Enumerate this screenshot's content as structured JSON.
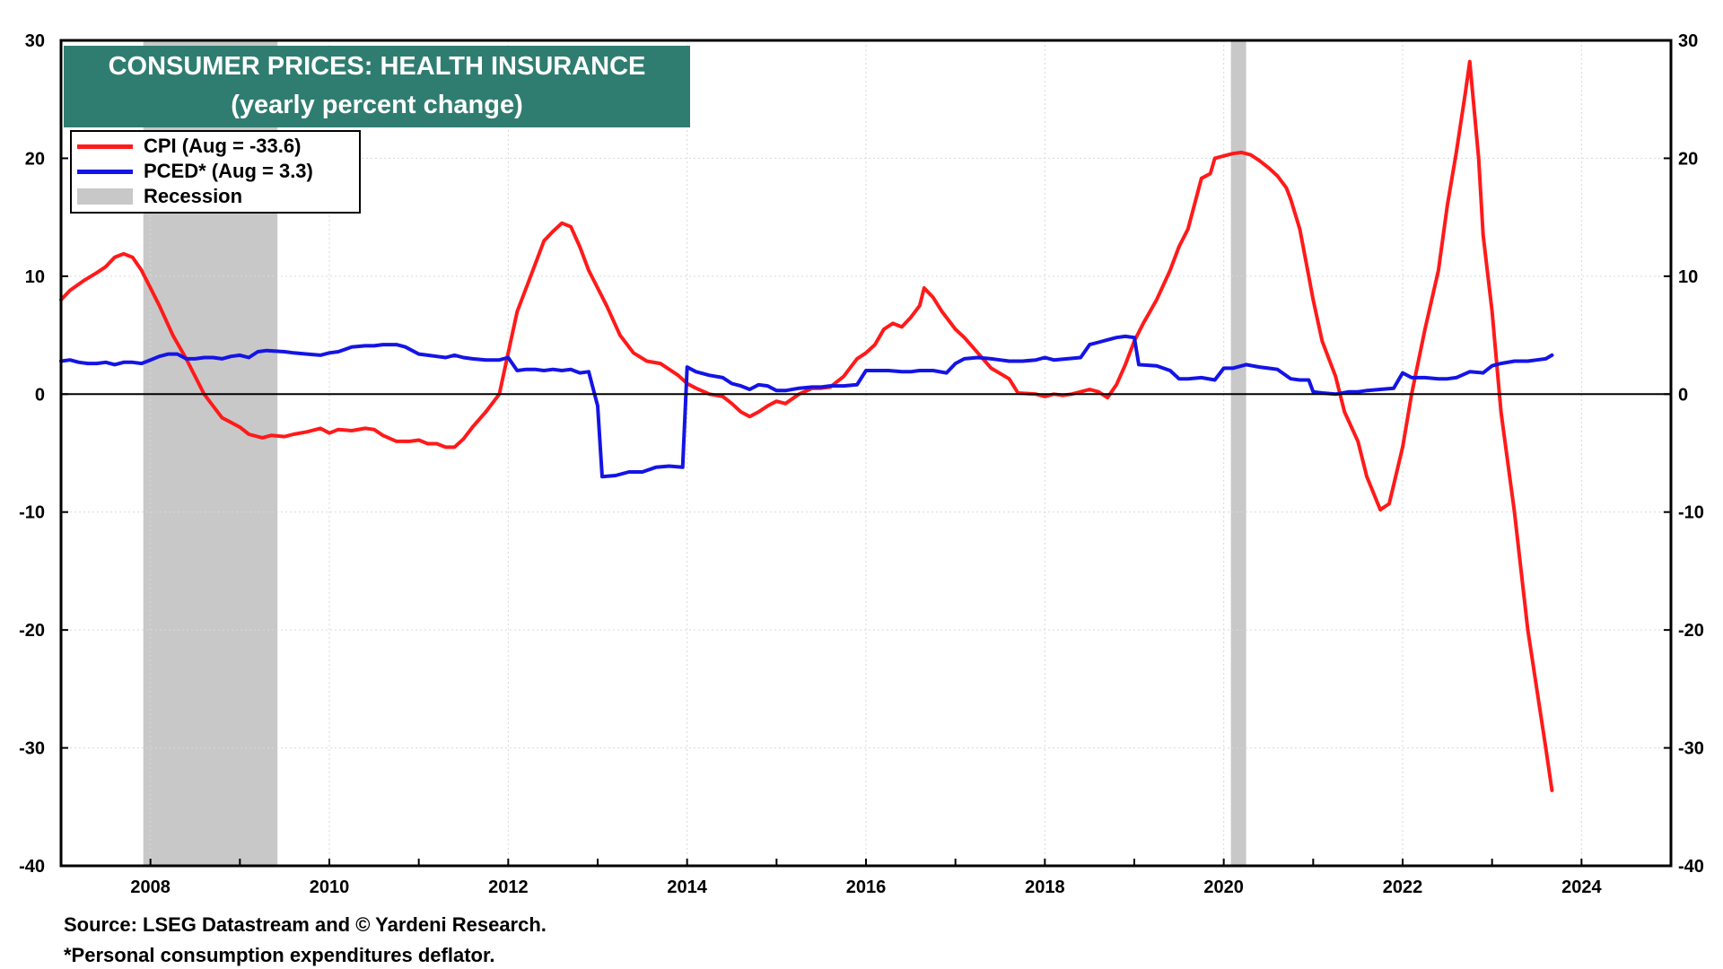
{
  "chart_data": {
    "type": "line",
    "title": "CONSUMER PRICES: HEALTH INSURANCE",
    "subtitle": "(yearly percent change)",
    "xlabel": "",
    "ylabel": "",
    "xlim": [
      2007.0,
      2025.0
    ],
    "ylim": [
      -40,
      30
    ],
    "y_ticks": [
      30,
      20,
      10,
      0,
      -10,
      -20,
      -30,
      -40
    ],
    "x_ticks": [
      2008,
      2010,
      2012,
      2014,
      2016,
      2018,
      2020,
      2022,
      2024
    ],
    "grid": true,
    "legend_position": "top-left",
    "recessions": [
      [
        2007.92,
        2009.42
      ],
      [
        2020.08,
        2020.25
      ]
    ],
    "series": [
      {
        "name": "CPI",
        "legend_label": "CPI (Aug = -33.6)",
        "color": "#ff1a1a",
        "points": [
          [
            2007.0,
            8.0
          ],
          [
            2007.1,
            8.8
          ],
          [
            2007.25,
            9.6
          ],
          [
            2007.4,
            10.3
          ],
          [
            2007.5,
            10.8
          ],
          [
            2007.6,
            11.6
          ],
          [
            2007.7,
            11.9
          ],
          [
            2007.8,
            11.6
          ],
          [
            2007.9,
            10.5
          ],
          [
            2008.0,
            9.0
          ],
          [
            2008.1,
            7.5
          ],
          [
            2008.25,
            5.0
          ],
          [
            2008.4,
            3.0
          ],
          [
            2008.5,
            1.5
          ],
          [
            2008.6,
            0.0
          ],
          [
            2008.7,
            -1.0
          ],
          [
            2008.8,
            -2.0
          ],
          [
            2008.9,
            -2.4
          ],
          [
            2009.0,
            -2.8
          ],
          [
            2009.1,
            -3.4
          ],
          [
            2009.25,
            -3.7
          ],
          [
            2009.35,
            -3.5
          ],
          [
            2009.5,
            -3.6
          ],
          [
            2009.6,
            -3.4
          ],
          [
            2009.75,
            -3.2
          ],
          [
            2009.9,
            -2.9
          ],
          [
            2010.0,
            -3.3
          ],
          [
            2010.1,
            -3.0
          ],
          [
            2010.25,
            -3.1
          ],
          [
            2010.4,
            -2.9
          ],
          [
            2010.5,
            -3.0
          ],
          [
            2010.6,
            -3.5
          ],
          [
            2010.75,
            -4.0
          ],
          [
            2010.9,
            -4.0
          ],
          [
            2011.0,
            -3.9
          ],
          [
            2011.1,
            -4.2
          ],
          [
            2011.2,
            -4.2
          ],
          [
            2011.3,
            -4.5
          ],
          [
            2011.4,
            -4.5
          ],
          [
            2011.5,
            -3.8
          ],
          [
            2011.6,
            -2.8
          ],
          [
            2011.75,
            -1.5
          ],
          [
            2011.9,
            0.0
          ],
          [
            2012.0,
            3.5
          ],
          [
            2012.1,
            7.0
          ],
          [
            2012.25,
            10.0
          ],
          [
            2012.4,
            13.0
          ],
          [
            2012.5,
            13.8
          ],
          [
            2012.6,
            14.5
          ],
          [
            2012.7,
            14.2
          ],
          [
            2012.8,
            12.5
          ],
          [
            2012.9,
            10.5
          ],
          [
            2013.0,
            9.0
          ],
          [
            2013.1,
            7.5
          ],
          [
            2013.25,
            5.0
          ],
          [
            2013.4,
            3.5
          ],
          [
            2013.55,
            2.8
          ],
          [
            2013.7,
            2.6
          ],
          [
            2013.9,
            1.6
          ],
          [
            2014.0,
            0.9
          ],
          [
            2014.1,
            0.5
          ],
          [
            2014.25,
            0.0
          ],
          [
            2014.4,
            -0.2
          ],
          [
            2014.5,
            -0.8
          ],
          [
            2014.6,
            -1.5
          ],
          [
            2014.7,
            -1.9
          ],
          [
            2014.8,
            -1.5
          ],
          [
            2014.9,
            -1.0
          ],
          [
            2015.0,
            -0.6
          ],
          [
            2015.1,
            -0.8
          ],
          [
            2015.25,
            0.0
          ],
          [
            2015.4,
            0.5
          ],
          [
            2015.5,
            0.5
          ],
          [
            2015.6,
            0.6
          ],
          [
            2015.75,
            1.5
          ],
          [
            2015.9,
            3.0
          ],
          [
            2016.0,
            3.5
          ],
          [
            2016.1,
            4.2
          ],
          [
            2016.2,
            5.5
          ],
          [
            2016.3,
            6.0
          ],
          [
            2016.4,
            5.7
          ],
          [
            2016.5,
            6.5
          ],
          [
            2016.6,
            7.5
          ],
          [
            2016.65,
            9.0
          ],
          [
            2016.75,
            8.2
          ],
          [
            2016.85,
            7.0
          ],
          [
            2017.0,
            5.5
          ],
          [
            2017.1,
            4.8
          ],
          [
            2017.25,
            3.5
          ],
          [
            2017.4,
            2.2
          ],
          [
            2017.6,
            1.3
          ],
          [
            2017.7,
            0.1
          ],
          [
            2017.9,
            0.0
          ],
          [
            2018.0,
            -0.2
          ],
          [
            2018.1,
            0.0
          ],
          [
            2018.2,
            -0.1
          ],
          [
            2018.3,
            0.0
          ],
          [
            2018.4,
            0.2
          ],
          [
            2018.5,
            0.4
          ],
          [
            2018.6,
            0.2
          ],
          [
            2018.7,
            -0.3
          ],
          [
            2018.8,
            0.8
          ],
          [
            2018.9,
            2.5
          ],
          [
            2019.0,
            4.5
          ],
          [
            2019.1,
            6.0
          ],
          [
            2019.25,
            8.0
          ],
          [
            2019.4,
            10.5
          ],
          [
            2019.5,
            12.5
          ],
          [
            2019.6,
            14.0
          ],
          [
            2019.75,
            18.3
          ],
          [
            2019.85,
            18.7
          ],
          [
            2019.9,
            20.0
          ],
          [
            2020.0,
            20.2
          ],
          [
            2020.1,
            20.4
          ],
          [
            2020.2,
            20.5
          ],
          [
            2020.3,
            20.3
          ],
          [
            2020.4,
            19.8
          ],
          [
            2020.5,
            19.2
          ],
          [
            2020.6,
            18.5
          ],
          [
            2020.7,
            17.5
          ],
          [
            2020.75,
            16.5
          ],
          [
            2020.85,
            14.0
          ],
          [
            2020.95,
            10.0
          ],
          [
            2021.0,
            8.0
          ],
          [
            2021.1,
            4.5
          ],
          [
            2021.25,
            1.5
          ],
          [
            2021.35,
            -1.5
          ],
          [
            2021.5,
            -4.0
          ],
          [
            2021.6,
            -7.0
          ],
          [
            2021.75,
            -9.8
          ],
          [
            2021.85,
            -9.3
          ],
          [
            2022.0,
            -4.5
          ],
          [
            2022.1,
            0.0
          ],
          [
            2022.25,
            5.5
          ],
          [
            2022.4,
            10.5
          ],
          [
            2022.5,
            16.0
          ],
          [
            2022.6,
            20.5
          ],
          [
            2022.7,
            25.5
          ],
          [
            2022.75,
            28.2
          ],
          [
            2022.85,
            20.0
          ],
          [
            2022.9,
            13.5
          ],
          [
            2023.0,
            7.0
          ],
          [
            2023.1,
            -1.5
          ],
          [
            2023.25,
            -10.0
          ],
          [
            2023.4,
            -20.0
          ],
          [
            2023.5,
            -25.0
          ],
          [
            2023.6,
            -30.0
          ],
          [
            2023.67,
            -33.6
          ]
        ]
      },
      {
        "name": "PCED*",
        "legend_label": "PCED* (Aug = 3.3)",
        "color": "#1414e6",
        "points": [
          [
            2007.0,
            2.8
          ],
          [
            2007.1,
            2.9
          ],
          [
            2007.2,
            2.7
          ],
          [
            2007.3,
            2.6
          ],
          [
            2007.4,
            2.6
          ],
          [
            2007.5,
            2.7
          ],
          [
            2007.6,
            2.5
          ],
          [
            2007.7,
            2.7
          ],
          [
            2007.8,
            2.7
          ],
          [
            2007.9,
            2.6
          ],
          [
            2008.0,
            2.9
          ],
          [
            2008.1,
            3.2
          ],
          [
            2008.2,
            3.4
          ],
          [
            2008.3,
            3.4
          ],
          [
            2008.4,
            3.0
          ],
          [
            2008.5,
            3.0
          ],
          [
            2008.6,
            3.1
          ],
          [
            2008.7,
            3.1
          ],
          [
            2008.8,
            3.0
          ],
          [
            2008.9,
            3.2
          ],
          [
            2009.0,
            3.3
          ],
          [
            2009.1,
            3.1
          ],
          [
            2009.2,
            3.6
          ],
          [
            2009.3,
            3.7
          ],
          [
            2009.5,
            3.6
          ],
          [
            2009.6,
            3.5
          ],
          [
            2009.75,
            3.4
          ],
          [
            2009.9,
            3.3
          ],
          [
            2010.0,
            3.5
          ],
          [
            2010.1,
            3.6
          ],
          [
            2010.25,
            4.0
          ],
          [
            2010.4,
            4.1
          ],
          [
            2010.5,
            4.1
          ],
          [
            2010.6,
            4.2
          ],
          [
            2010.75,
            4.2
          ],
          [
            2010.85,
            4.0
          ],
          [
            2011.0,
            3.4
          ],
          [
            2011.1,
            3.3
          ],
          [
            2011.2,
            3.2
          ],
          [
            2011.3,
            3.1
          ],
          [
            2011.4,
            3.3
          ],
          [
            2011.5,
            3.1
          ],
          [
            2011.6,
            3.0
          ],
          [
            2011.75,
            2.9
          ],
          [
            2011.9,
            2.9
          ],
          [
            2012.0,
            3.1
          ],
          [
            2012.1,
            2.0
          ],
          [
            2012.2,
            2.1
          ],
          [
            2012.3,
            2.1
          ],
          [
            2012.4,
            2.0
          ],
          [
            2012.5,
            2.1
          ],
          [
            2012.6,
            2.0
          ],
          [
            2012.7,
            2.1
          ],
          [
            2012.8,
            1.8
          ],
          [
            2012.9,
            1.9
          ],
          [
            2013.0,
            -1.0
          ],
          [
            2013.05,
            -7.0
          ],
          [
            2013.2,
            -6.9
          ],
          [
            2013.35,
            -6.6
          ],
          [
            2013.5,
            -6.6
          ],
          [
            2013.65,
            -6.2
          ],
          [
            2013.8,
            -6.1
          ],
          [
            2013.95,
            -6.2
          ],
          [
            2014.0,
            2.3
          ],
          [
            2014.1,
            1.9
          ],
          [
            2014.25,
            1.6
          ],
          [
            2014.4,
            1.4
          ],
          [
            2014.5,
            0.9
          ],
          [
            2014.6,
            0.7
          ],
          [
            2014.7,
            0.4
          ],
          [
            2014.8,
            0.8
          ],
          [
            2014.9,
            0.7
          ],
          [
            2015.0,
            0.3
          ],
          [
            2015.1,
            0.3
          ],
          [
            2015.25,
            0.5
          ],
          [
            2015.4,
            0.6
          ],
          [
            2015.5,
            0.6
          ],
          [
            2015.6,
            0.7
          ],
          [
            2015.75,
            0.7
          ],
          [
            2015.9,
            0.8
          ],
          [
            2016.0,
            2.0
          ],
          [
            2016.1,
            2.0
          ],
          [
            2016.25,
            2.0
          ],
          [
            2016.4,
            1.9
          ],
          [
            2016.5,
            1.9
          ],
          [
            2016.6,
            2.0
          ],
          [
            2016.75,
            2.0
          ],
          [
            2016.9,
            1.8
          ],
          [
            2017.0,
            2.6
          ],
          [
            2017.1,
            3.0
          ],
          [
            2017.25,
            3.1
          ],
          [
            2017.4,
            3.0
          ],
          [
            2017.5,
            2.9
          ],
          [
            2017.6,
            2.8
          ],
          [
            2017.75,
            2.8
          ],
          [
            2017.9,
            2.9
          ],
          [
            2018.0,
            3.1
          ],
          [
            2018.1,
            2.9
          ],
          [
            2018.25,
            3.0
          ],
          [
            2018.4,
            3.1
          ],
          [
            2018.5,
            4.2
          ],
          [
            2018.6,
            4.4
          ],
          [
            2018.7,
            4.6
          ],
          [
            2018.8,
            4.8
          ],
          [
            2018.9,
            4.9
          ],
          [
            2019.0,
            4.8
          ],
          [
            2019.05,
            2.5
          ],
          [
            2019.25,
            2.4
          ],
          [
            2019.4,
            2.0
          ],
          [
            2019.5,
            1.3
          ],
          [
            2019.6,
            1.3
          ],
          [
            2019.75,
            1.4
          ],
          [
            2019.9,
            1.2
          ],
          [
            2020.0,
            2.2
          ],
          [
            2020.1,
            2.2
          ],
          [
            2020.25,
            2.5
          ],
          [
            2020.4,
            2.3
          ],
          [
            2020.5,
            2.2
          ],
          [
            2020.6,
            2.1
          ],
          [
            2020.75,
            1.3
          ],
          [
            2020.85,
            1.2
          ],
          [
            2020.95,
            1.2
          ],
          [
            2021.0,
            0.2
          ],
          [
            2021.1,
            0.1
          ],
          [
            2021.25,
            0.0
          ],
          [
            2021.4,
            0.2
          ],
          [
            2021.5,
            0.2
          ],
          [
            2021.6,
            0.3
          ],
          [
            2021.75,
            0.4
          ],
          [
            2021.9,
            0.5
          ],
          [
            2022.0,
            1.8
          ],
          [
            2022.1,
            1.4
          ],
          [
            2022.25,
            1.4
          ],
          [
            2022.4,
            1.3
          ],
          [
            2022.5,
            1.3
          ],
          [
            2022.6,
            1.4
          ],
          [
            2022.75,
            1.9
          ],
          [
            2022.9,
            1.8
          ],
          [
            2023.0,
            2.4
          ],
          [
            2023.1,
            2.6
          ],
          [
            2023.25,
            2.8
          ],
          [
            2023.4,
            2.8
          ],
          [
            2023.5,
            2.9
          ],
          [
            2023.6,
            3.0
          ],
          [
            2023.67,
            3.3
          ]
        ]
      }
    ],
    "recession_legend_label": "Recession",
    "recession_color": "#c8c8c8",
    "source": "Source: LSEG Datastream and © Yardeni Research.",
    "footnote": "*Personal consumption expenditures deflator.",
    "title_bg_color": "#2f7d70"
  }
}
